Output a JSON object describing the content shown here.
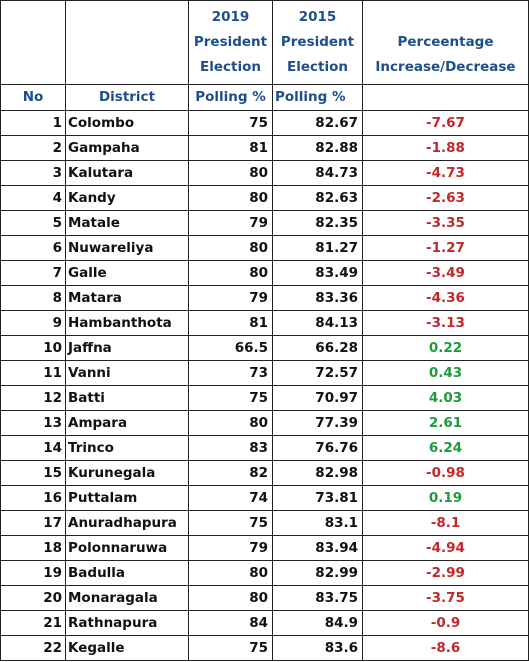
{
  "headers": {
    "no": "No",
    "district": "District",
    "y2019": [
      "2019",
      "President",
      "Election"
    ],
    "y2015": [
      "2015",
      "President",
      "Election"
    ],
    "change": [
      "Perceentage",
      "Increase/Decrease"
    ],
    "polling2019": "Polling %",
    "polling2015": "Polling %"
  },
  "rows": [
    {
      "no": "1",
      "district": "Colombo",
      "p2019": "75",
      "p2015": "82.67",
      "change": "-7.67",
      "trend": "neg"
    },
    {
      "no": "2",
      "district": "Gampaha",
      "p2019": "81",
      "p2015": "82.88",
      "change": "-1.88",
      "trend": "neg"
    },
    {
      "no": "3",
      "district": "Kalutara",
      "p2019": "80",
      "p2015": "84.73",
      "change": "-4.73",
      "trend": "neg"
    },
    {
      "no": "4",
      "district": "Kandy",
      "p2019": "80",
      "p2015": "82.63",
      "change": "-2.63",
      "trend": "neg"
    },
    {
      "no": "5",
      "district": "Matale",
      "p2019": "79",
      "p2015": "82.35",
      "change": "-3.35",
      "trend": "neg"
    },
    {
      "no": "6",
      "district": "Nuwareliya",
      "p2019": "80",
      "p2015": "81.27",
      "change": "-1.27",
      "trend": "neg"
    },
    {
      "no": "7",
      "district": "Galle",
      "p2019": "80",
      "p2015": "83.49",
      "change": "-3.49",
      "trend": "neg"
    },
    {
      "no": "8",
      "district": "Matara",
      "p2019": "79",
      "p2015": "83.36",
      "change": "-4.36",
      "trend": "neg"
    },
    {
      "no": "9",
      "district": "Hambanthota",
      "p2019": "81",
      "p2015": "84.13",
      "change": "-3.13",
      "trend": "neg"
    },
    {
      "no": "10",
      "district": "Jaffna",
      "p2019": "66.5",
      "p2015": "66.28",
      "change": "0.22",
      "trend": "pos"
    },
    {
      "no": "11",
      "district": "Vanni",
      "p2019": "73",
      "p2015": "72.57",
      "change": "0.43",
      "trend": "pos"
    },
    {
      "no": "12",
      "district": "Batti",
      "p2019": "75",
      "p2015": "70.97",
      "change": "4.03",
      "trend": "pos"
    },
    {
      "no": "13",
      "district": "Ampara",
      "p2019": "80",
      "p2015": "77.39",
      "change": "2.61",
      "trend": "pos"
    },
    {
      "no": "14",
      "district": "Trinco",
      "p2019": "83",
      "p2015": "76.76",
      "change": "6.24",
      "trend": "pos"
    },
    {
      "no": "15",
      "district": "Kurunegala",
      "p2019": "82",
      "p2015": "82.98",
      "change": "-0.98",
      "trend": "neg"
    },
    {
      "no": "16",
      "district": "Puttalam",
      "p2019": "74",
      "p2015": "73.81",
      "change": "0.19",
      "trend": "pos"
    },
    {
      "no": "17",
      "district": "Anuradhapura",
      "p2019": "75",
      "p2015": "83.1",
      "change": "-8.1",
      "trend": "neg"
    },
    {
      "no": "18",
      "district": "Polonnaruwa",
      "p2019": "79",
      "p2015": "83.94",
      "change": "-4.94",
      "trend": "neg"
    },
    {
      "no": "19",
      "district": "Badulla",
      "p2019": "80",
      "p2015": "82.99",
      "change": "-2.99",
      "trend": "neg"
    },
    {
      "no": "20",
      "district": "Monaragala",
      "p2019": "80",
      "p2015": "83.75",
      "change": "-3.75",
      "trend": "neg"
    },
    {
      "no": "21",
      "district": "Rathnapura",
      "p2019": "84",
      "p2015": "84.9",
      "change": "-0.9",
      "trend": "neg"
    },
    {
      "no": "22",
      "district": "Kegalle",
      "p2019": "75",
      "p2015": "83.6",
      "change": "-8.6",
      "trend": "neg"
    }
  ],
  "colors": {
    "header": "#1f4e8c",
    "negative": "#c0282b",
    "positive": "#1d9c3e",
    "border": "#222222"
  }
}
